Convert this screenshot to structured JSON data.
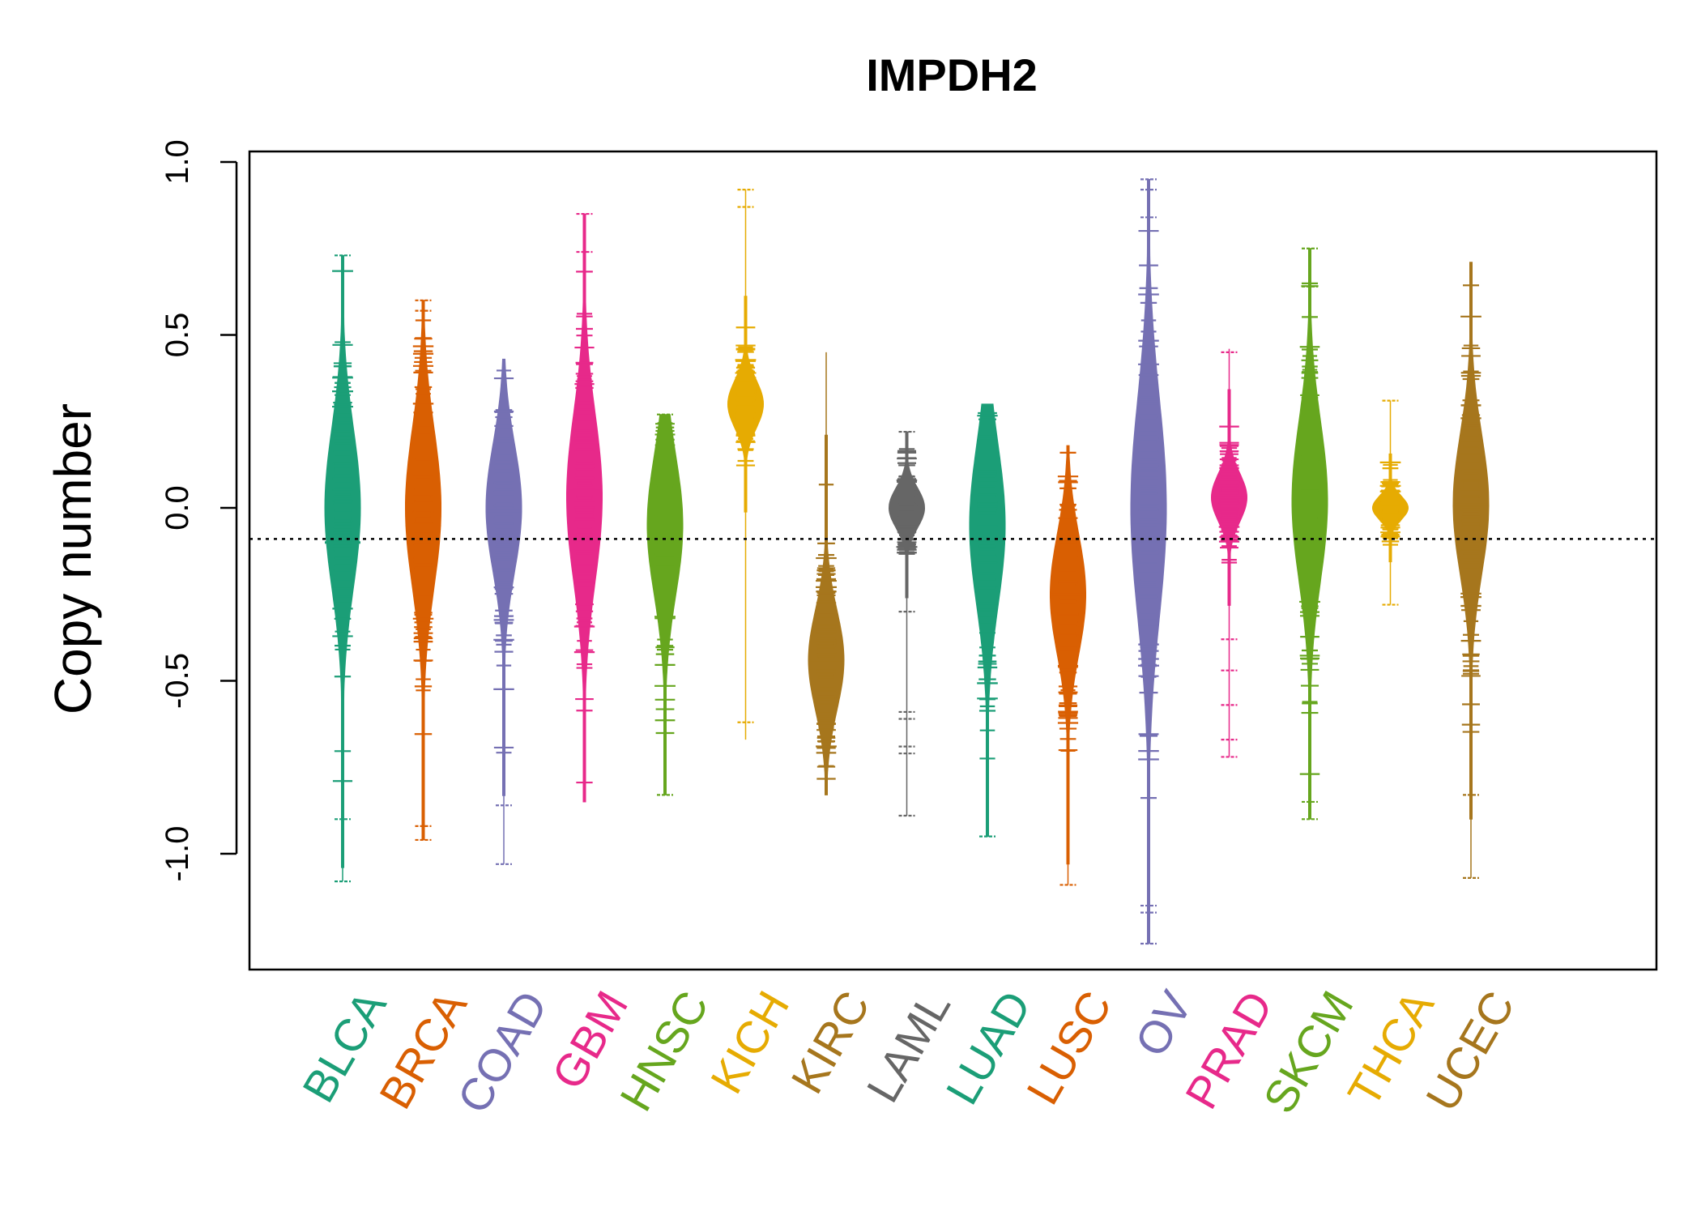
{
  "chart_data": {
    "type": "beanplot",
    "title": "IMPDH2",
    "xlabel": "",
    "ylabel": "Copy number",
    "ylim": [
      -1.35,
      1.03
    ],
    "yticks": [
      -1.0,
      -0.5,
      0.0,
      0.5,
      1.0
    ],
    "ytick_labels": [
      "-1.0",
      "-0.5",
      "0.0",
      "0.5",
      "1.0"
    ],
    "reference_line": -0.09,
    "categories": [
      {
        "name": "BLCA",
        "color": "#1B9E77",
        "min": -1.08,
        "max": 0.73,
        "center": 0.0,
        "scale": 0.4,
        "median": -0.1,
        "outliers": [
          -0.9,
          -1.08,
          0.73
        ]
      },
      {
        "name": "BRCA",
        "color": "#D95F02",
        "min": -0.96,
        "max": 0.6,
        "center": 0.0,
        "scale": 0.4,
        "median": -0.05,
        "outliers": [
          -0.92,
          -0.96,
          0.57,
          0.6
        ]
      },
      {
        "name": "COAD",
        "color": "#7570B3",
        "min": -1.03,
        "max": 0.43,
        "center": 0.0,
        "scale": 0.32,
        "median": -0.01,
        "outliers": [
          -0.86,
          -1.03
        ]
      },
      {
        "name": "GBM",
        "color": "#E7298A",
        "min": -0.85,
        "max": 0.85,
        "center": 0.03,
        "scale": 0.42,
        "median": 0.05,
        "outliers": [
          0.85,
          0.74
        ]
      },
      {
        "name": "HNSC",
        "color": "#66A61E",
        "min": -0.83,
        "max": 0.27,
        "center": -0.05,
        "scale": 0.35,
        "median": -0.05,
        "outliers": [
          -0.83,
          0.27
        ]
      },
      {
        "name": "KICH",
        "color": "#E6AB02",
        "min": -0.67,
        "max": 0.92,
        "center": 0.3,
        "scale": 0.12,
        "median": 0.3,
        "outliers": [
          0.87,
          0.92,
          -0.62
        ]
      },
      {
        "name": "KIRC",
        "color": "#A6761D",
        "min": -0.83,
        "max": 0.45,
        "center": -0.44,
        "scale": 0.25,
        "median": -0.44,
        "outliers": []
      },
      {
        "name": "LAML",
        "color": "#666666",
        "min": -0.89,
        "max": 0.22,
        "center": 0.0,
        "scale": 0.1,
        "median": 0.0,
        "outliers": [
          -0.3,
          -0.59,
          -0.61,
          -0.69,
          -0.71,
          -0.89,
          0.22
        ]
      },
      {
        "name": "LUAD",
        "color": "#1B9E77",
        "min": -0.95,
        "max": 0.3,
        "center": -0.05,
        "scale": 0.4,
        "median": -0.1,
        "outliers": [
          -0.95
        ]
      },
      {
        "name": "LUSC",
        "color": "#D95F02",
        "min": -1.09,
        "max": 0.18,
        "center": -0.25,
        "scale": 0.3,
        "median": -0.25,
        "outliers": [
          -1.09
        ]
      },
      {
        "name": "OV",
        "color": "#7570B3",
        "min": -1.26,
        "max": 0.95,
        "center": 0.0,
        "scale": 0.55,
        "median": -0.05,
        "outliers": [
          -1.15,
          -1.17,
          -1.26,
          0.84,
          0.92,
          0.95
        ]
      },
      {
        "name": "PRAD",
        "color": "#E7298A",
        "min": -0.72,
        "max": 0.46,
        "center": 0.03,
        "scale": 0.12,
        "median": 0.03,
        "outliers": [
          -0.38,
          -0.47,
          -0.57,
          -0.67,
          -0.72,
          0.45
        ]
      },
      {
        "name": "SKCM",
        "color": "#66A61E",
        "min": -0.9,
        "max": 0.75,
        "center": 0.02,
        "scale": 0.4,
        "median": 0.02,
        "outliers": [
          -0.85,
          -0.9,
          0.64,
          0.75
        ]
      },
      {
        "name": "THCA",
        "color": "#E6AB02",
        "min": -0.28,
        "max": 0.31,
        "center": 0.0,
        "scale": 0.06,
        "median": 0.0,
        "outliers": [
          0.31,
          -0.28
        ]
      },
      {
        "name": "UCEC",
        "color": "#A6761D",
        "min": -1.07,
        "max": 0.71,
        "center": 0.01,
        "scale": 0.35,
        "median": 0.01,
        "outliers": [
          -0.83,
          -1.07
        ]
      }
    ]
  }
}
